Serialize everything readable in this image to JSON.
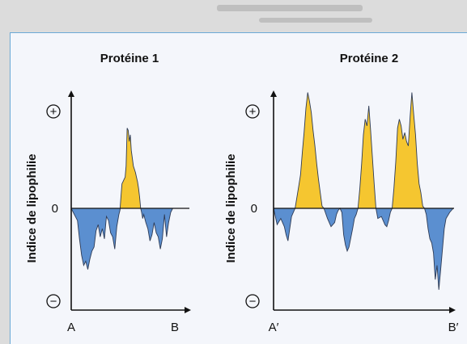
{
  "colors": {
    "positive": "#f5c630",
    "negative": "#5b8fd0",
    "axis": "#111111",
    "frame": "#6aa9d6"
  },
  "chart_data": [
    {
      "type": "area",
      "title": "Protéine 1",
      "ylabel": "Indice de lipophilie",
      "ytick": "0",
      "ymax_symbol": "+",
      "ymin_symbol": "−",
      "x_start_label": "A",
      "x_end_label": "B",
      "xlim": [
        0,
        100
      ],
      "ylim": [
        -100,
        100
      ],
      "x": [
        0,
        3,
        6,
        8,
        10,
        12,
        14,
        16,
        18,
        20,
        22,
        24,
        26,
        28,
        30,
        32,
        34,
        36,
        38,
        40,
        42,
        44,
        46,
        47,
        48,
        49,
        50,
        51,
        52,
        53,
        54,
        55,
        56,
        57,
        58,
        60,
        62,
        63,
        64,
        65,
        66,
        67,
        68,
        69,
        70,
        72,
        74,
        76,
        78,
        80,
        82,
        84,
        86,
        88,
        90,
        92,
        94,
        96,
        98,
        100
      ],
      "y": [
        0,
        -6,
        -12,
        -30,
        -46,
        -56,
        -52,
        -60,
        -50,
        -42,
        -38,
        -22,
        -16,
        -28,
        -20,
        -30,
        -8,
        -12,
        -24,
        -28,
        -40,
        -18,
        -6,
        -2,
        10,
        22,
        24,
        26,
        28,
        38,
        72,
        70,
        60,
        66,
        52,
        38,
        32,
        28,
        24,
        18,
        10,
        0,
        -4,
        -10,
        -6,
        -14,
        -20,
        -32,
        -26,
        -14,
        -24,
        -28,
        -40,
        -30,
        -6,
        -28,
        -14,
        -4,
        0,
        0
      ]
    },
    {
      "type": "area",
      "title": "Protéine 2",
      "ylabel": "Indice de lipophilie",
      "ytick": "0",
      "ymax_symbol": "+",
      "ymin_symbol": "−",
      "x_start_label": "A′",
      "x_end_label": "B′",
      "xlim": [
        0,
        100
      ],
      "ylim": [
        -100,
        100
      ],
      "x": [
        0,
        2,
        4,
        6,
        7,
        8,
        9,
        10,
        12,
        14,
        15,
        16,
        17,
        18,
        19,
        20,
        21,
        22,
        23,
        24,
        25,
        26,
        27,
        28,
        30,
        32,
        34,
        35,
        36,
        37,
        38,
        39,
        40,
        41,
        42,
        44,
        45,
        46,
        47,
        48,
        49,
        50,
        51,
        52,
        53,
        54,
        55,
        56,
        57,
        58,
        60,
        62,
        63,
        64,
        65,
        66,
        67,
        68,
        69,
        70,
        71,
        72,
        73,
        74,
        75,
        76,
        77,
        78,
        79,
        80,
        81,
        82,
        83,
        84,
        85,
        86,
        87,
        88,
        89,
        90,
        91,
        92,
        93,
        94,
        95,
        96,
        98,
        100
      ],
      "y": [
        0,
        -16,
        -10,
        -18,
        -26,
        -32,
        -20,
        -8,
        0,
        20,
        30,
        50,
        68,
        90,
        104,
        96,
        86,
        70,
        56,
        40,
        26,
        14,
        2,
        0,
        -10,
        -18,
        -14,
        -6,
        -2,
        0,
        -4,
        -26,
        -36,
        -42,
        -38,
        -20,
        -10,
        -6,
        0,
        18,
        40,
        66,
        80,
        74,
        92,
        70,
        46,
        22,
        0,
        -10,
        -8,
        -16,
        -18,
        -12,
        -4,
        0,
        18,
        42,
        72,
        80,
        74,
        62,
        68,
        60,
        56,
        82,
        104,
        84,
        66,
        40,
        22,
        14,
        2,
        0,
        -6,
        -20,
        -30,
        -34,
        -44,
        -70,
        -56,
        -80,
        -60,
        -40,
        -20,
        -10,
        -4,
        0
      ]
    }
  ]
}
